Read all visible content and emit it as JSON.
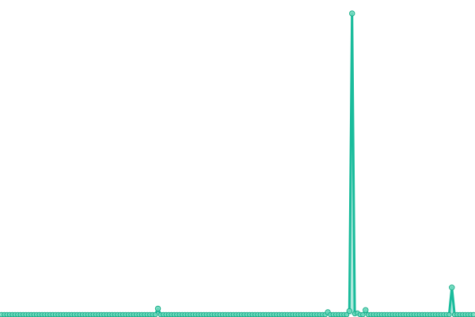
{
  "chart_data": {
    "type": "line",
    "title": "",
    "xlabel": "",
    "ylabel": "",
    "grid": false,
    "legend": "none",
    "ylim": [
      0,
      100
    ],
    "colors": {
      "line": "#1abc9c",
      "marker_fill": "#76dcc1",
      "marker_stroke": "#1aae8a",
      "area": "#1abc9c"
    },
    "values": [
      0,
      0,
      0,
      0,
      0,
      0,
      0,
      0,
      0,
      0,
      0,
      0,
      0,
      0,
      0,
      0,
      0,
      0,
      0,
      0,
      0,
      0,
      0,
      0,
      0,
      0,
      0,
      0,
      0,
      0,
      0,
      0,
      0,
      0,
      0,
      0,
      0,
      0,
      0,
      0,
      0,
      0,
      0,
      0,
      0,
      0,
      0,
      0,
      0,
      0,
      0,
      0,
      0,
      0,
      0,
      0,
      0,
      0,
      2,
      0,
      0,
      0,
      0,
      0,
      0,
      0,
      0,
      0,
      0,
      0,
      0,
      0,
      0,
      0,
      0,
      0,
      0,
      0,
      0,
      0,
      0,
      0,
      0,
      0,
      0,
      0,
      0,
      0,
      0,
      0,
      0,
      0,
      0,
      0,
      0,
      0,
      0,
      0,
      0,
      0,
      0,
      0,
      0,
      0,
      0,
      0,
      0,
      0,
      0,
      0,
      0,
      0,
      0,
      0,
      0,
      0,
      0,
      0,
      0,
      0,
      0,
      0.8,
      0,
      0,
      0,
      0,
      0,
      0,
      0,
      1.2,
      100,
      0.3,
      0.5,
      0,
      0,
      1.5,
      0,
      0,
      0,
      0,
      0,
      0,
      0,
      0,
      0,
      0,
      0,
      0,
      0,
      0,
      0,
      0,
      0,
      0,
      0,
      0,
      0,
      0,
      0,
      0,
      0,
      0,
      0,
      0,
      0,
      0,
      0,
      9,
      0,
      0,
      0,
      0,
      0,
      0,
      0,
      0
    ]
  }
}
